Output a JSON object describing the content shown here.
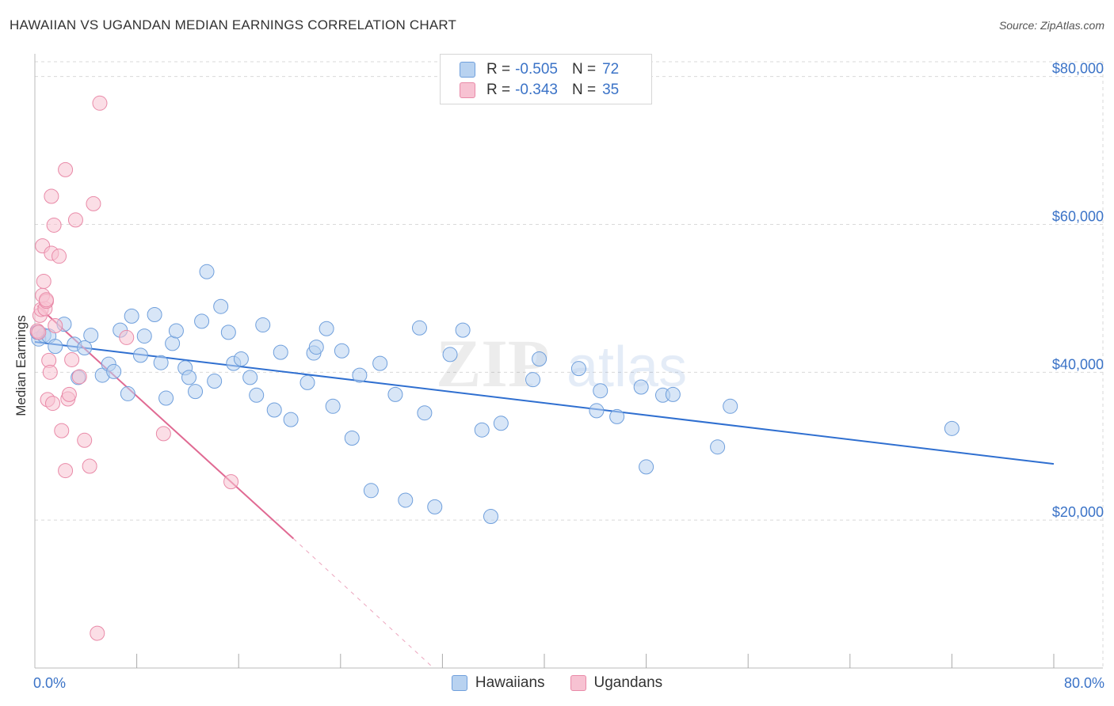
{
  "title": "HAWAIIAN VS UGANDAN MEDIAN EARNINGS CORRELATION CHART",
  "source": "Source: ZipAtlas.com",
  "watermark": {
    "zip": "ZIP",
    "atlas": "atlas"
  },
  "colors": {
    "blue": "#3b73c7",
    "blue_fill": "#b8d2f0",
    "blue_stroke": "#6f9fdc",
    "blue_line": "#2f6fd0",
    "pink_fill": "#f7c2d2",
    "pink_stroke": "#e98aa8",
    "pink_line": "#e06a93",
    "grid": "#d9d9d9"
  },
  "legend": {
    "rows": [
      {
        "r_label": "R =",
        "r_value": "-0.505",
        "n_label": "N =",
        "n_value": "72"
      },
      {
        "r_label": "R =",
        "r_value": "-0.343",
        "n_label": "N =",
        "n_value": "35"
      }
    ]
  },
  "bottom_legend": {
    "hawaiians": "Hawaiians",
    "ugandans": "Ugandans"
  },
  "chart_data": {
    "type": "scatter",
    "title": "HAWAIIAN VS UGANDAN MEDIAN EARNINGS CORRELATION CHART",
    "xlabel": "",
    "ylabel": "Median Earnings",
    "xlim": [
      0,
      80
    ],
    "ylim": [
      0,
      82000
    ],
    "x_tick_labels": [
      "0.0%",
      "80.0%"
    ],
    "y_ticks": [
      20000,
      40000,
      60000,
      80000
    ],
    "y_tick_labels": [
      "$20,000",
      "$40,000",
      "$60,000",
      "$80,000"
    ],
    "series": [
      {
        "name": "Hawaiians",
        "r": -0.505,
        "n": 72,
        "trend": {
          "x": [
            0,
            80
          ],
          "y": [
            44100,
            27600
          ]
        },
        "points": [
          [
            0.3,
            44500
          ],
          [
            0.7,
            45000
          ],
          [
            1.1,
            44900
          ],
          [
            1.6,
            43500
          ],
          [
            2.3,
            46500
          ],
          [
            3.1,
            43800
          ],
          [
            3.4,
            39300
          ],
          [
            3.9,
            43300
          ],
          [
            4.4,
            45000
          ],
          [
            5.3,
            39600
          ],
          [
            5.8,
            41100
          ],
          [
            6.2,
            40100
          ],
          [
            6.7,
            45700
          ],
          [
            7.3,
            37100
          ],
          [
            7.6,
            47600
          ],
          [
            8.3,
            42300
          ],
          [
            8.6,
            44900
          ],
          [
            9.4,
            47800
          ],
          [
            9.9,
            41300
          ],
          [
            10.3,
            36500
          ],
          [
            10.8,
            43900
          ],
          [
            11.1,
            45600
          ],
          [
            11.8,
            40600
          ],
          [
            12.1,
            39300
          ],
          [
            12.6,
            37400
          ],
          [
            13.1,
            46900
          ],
          [
            13.5,
            53600
          ],
          [
            14.1,
            38800
          ],
          [
            14.6,
            48900
          ],
          [
            15.2,
            45400
          ],
          [
            15.6,
            41200
          ],
          [
            16.2,
            41800
          ],
          [
            16.9,
            39300
          ],
          [
            17.4,
            36900
          ],
          [
            17.9,
            46400
          ],
          [
            18.8,
            34900
          ],
          [
            19.3,
            42700
          ],
          [
            20.1,
            33600
          ],
          [
            21.4,
            38600
          ],
          [
            21.9,
            42600
          ],
          [
            22.1,
            43400
          ],
          [
            22.9,
            45900
          ],
          [
            23.4,
            35400
          ],
          [
            24.1,
            42900
          ],
          [
            24.9,
            31100
          ],
          [
            25.5,
            39600
          ],
          [
            26.4,
            24000
          ],
          [
            27.1,
            41200
          ],
          [
            28.3,
            37000
          ],
          [
            29.1,
            22700
          ],
          [
            30.2,
            46000
          ],
          [
            30.6,
            34500
          ],
          [
            31.4,
            21800
          ],
          [
            32.6,
            42400
          ],
          [
            33.6,
            45700
          ],
          [
            35.1,
            32200
          ],
          [
            35.8,
            20500
          ],
          [
            36.6,
            33100
          ],
          [
            39.1,
            39000
          ],
          [
            39.6,
            41800
          ],
          [
            42.7,
            40500
          ],
          [
            44.1,
            34800
          ],
          [
            44.4,
            37500
          ],
          [
            45.7,
            34000
          ],
          [
            47.6,
            38000
          ],
          [
            48.0,
            27200
          ],
          [
            49.3,
            36900
          ],
          [
            50.1,
            37000
          ],
          [
            53.6,
            29900
          ],
          [
            54.6,
            35400
          ],
          [
            72.0,
            32400
          ],
          [
            0.2,
            45400
          ]
        ]
      },
      {
        "name": "Ugandans",
        "r": -0.343,
        "n": 35,
        "trend": {
          "x": [
            0.2,
            20.3
          ],
          "y": [
            49000,
            17500
          ]
        },
        "trend_dashed": {
          "x": [
            20.3,
            31.3
          ],
          "y": [
            17500,
            0
          ]
        },
        "points": [
          [
            0.2,
            45600
          ],
          [
            0.3,
            45400
          ],
          [
            0.4,
            47700
          ],
          [
            0.5,
            48500
          ],
          [
            0.6,
            50400
          ],
          [
            0.6,
            57100
          ],
          [
            0.7,
            52300
          ],
          [
            0.8,
            48600
          ],
          [
            0.9,
            49600
          ],
          [
            0.9,
            49800
          ],
          [
            1.0,
            36300
          ],
          [
            1.1,
            41600
          ],
          [
            1.2,
            40000
          ],
          [
            1.3,
            56100
          ],
          [
            1.3,
            63800
          ],
          [
            1.4,
            35800
          ],
          [
            1.5,
            59900
          ],
          [
            1.9,
            55700
          ],
          [
            2.1,
            32100
          ],
          [
            2.4,
            26700
          ],
          [
            2.4,
            67400
          ],
          [
            2.6,
            36400
          ],
          [
            2.7,
            37000
          ],
          [
            2.9,
            41700
          ],
          [
            3.2,
            60600
          ],
          [
            3.5,
            39400
          ],
          [
            3.9,
            30800
          ],
          [
            4.3,
            27300
          ],
          [
            4.6,
            62800
          ],
          [
            4.9,
            4700
          ],
          [
            5.1,
            76400
          ],
          [
            7.2,
            44700
          ],
          [
            10.1,
            31700
          ],
          [
            15.4,
            25200
          ],
          [
            1.6,
            46300
          ]
        ]
      }
    ]
  }
}
